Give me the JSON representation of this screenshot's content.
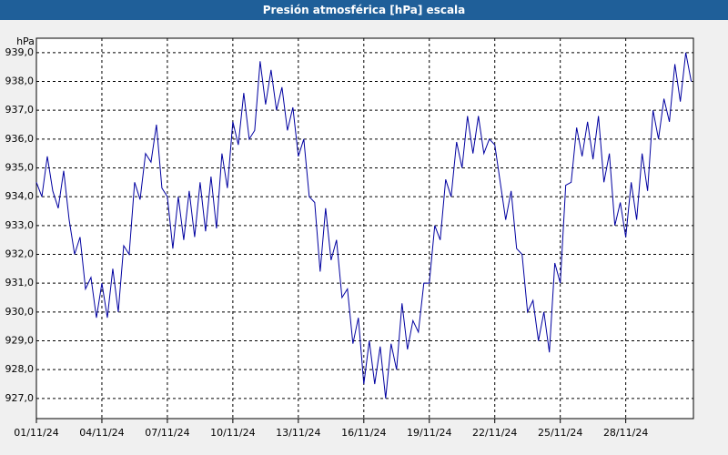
{
  "chart_data": {
    "type": "line",
    "title": "Presión atmosférica [hPa] escala",
    "y_label": "hPa",
    "color": "#0000a0",
    "grid": true,
    "xlim": [
      0,
      30.1
    ],
    "ylim": [
      926.3,
      939.5
    ],
    "xticks": [
      {
        "value": 0,
        "label": "01/11/24"
      },
      {
        "value": 3,
        "label": "04/11/24"
      },
      {
        "value": 6,
        "label": "07/11/24"
      },
      {
        "value": 9,
        "label": "10/11/24"
      },
      {
        "value": 12,
        "label": "13/11/24"
      },
      {
        "value": 15,
        "label": "16/11/24"
      },
      {
        "value": 18,
        "label": "19/11/24"
      },
      {
        "value": 21,
        "label": "22/11/24"
      },
      {
        "value": 24,
        "label": "25/11/24"
      },
      {
        "value": 27,
        "label": "28/11/24"
      }
    ],
    "yticks": [
      {
        "value": 927,
        "label": "927,0"
      },
      {
        "value": 928,
        "label": "928,0"
      },
      {
        "value": 929,
        "label": "929,0"
      },
      {
        "value": 930,
        "label": "930,0"
      },
      {
        "value": 931,
        "label": "931,0"
      },
      {
        "value": 932,
        "label": "932,0"
      },
      {
        "value": 933,
        "label": "933,0"
      },
      {
        "value": 934,
        "label": "934,0"
      },
      {
        "value": 935,
        "label": "935,0"
      },
      {
        "value": 936,
        "label": "936,0"
      },
      {
        "value": 937,
        "label": "937,0"
      },
      {
        "value": 938,
        "label": "938,0"
      },
      {
        "value": 939,
        "label": "939,0"
      }
    ],
    "x": [
      0,
      0.25,
      0.5,
      0.75,
      1,
      1.25,
      1.5,
      1.75,
      2,
      2.25,
      2.5,
      2.75,
      3,
      3.25,
      3.5,
      3.75,
      4,
      4.25,
      4.5,
      4.75,
      5,
      5.25,
      5.5,
      5.75,
      6,
      6.25,
      6.5,
      6.75,
      7,
      7.25,
      7.5,
      7.75,
      8,
      8.25,
      8.5,
      8.75,
      9,
      9.25,
      9.5,
      9.75,
      10,
      10.25,
      10.5,
      10.75,
      11,
      11.25,
      11.5,
      11.75,
      12,
      12.25,
      12.5,
      12.75,
      13,
      13.25,
      13.5,
      13.75,
      14,
      14.25,
      14.5,
      14.75,
      15,
      15.25,
      15.5,
      15.75,
      16,
      16.25,
      16.5,
      16.75,
      17,
      17.25,
      17.5,
      17.75,
      18,
      18.25,
      18.5,
      18.75,
      19,
      19.25,
      19.5,
      19.75,
      20,
      20.25,
      20.5,
      20.75,
      21,
      21.25,
      21.5,
      21.75,
      22,
      22.25,
      22.5,
      22.75,
      23,
      23.25,
      23.5,
      23.75,
      24,
      24.25,
      24.5,
      24.75,
      25,
      25.25,
      25.5,
      25.75,
      26,
      26.25,
      26.5,
      26.75,
      27,
      27.25,
      27.5,
      27.75,
      28,
      28.25,
      28.5,
      28.75,
      29,
      29.25,
      29.5,
      29.75,
      30
    ],
    "values": [
      934.5,
      934.0,
      935.4,
      934.2,
      933.6,
      934.9,
      933.2,
      932.0,
      932.6,
      930.8,
      931.2,
      929.8,
      931.0,
      929.8,
      931.5,
      930.0,
      932.3,
      932.0,
      934.5,
      933.9,
      935.5,
      935.2,
      936.5,
      934.3,
      934.0,
      932.2,
      934.0,
      932.5,
      934.2,
      932.6,
      934.5,
      932.8,
      934.7,
      932.9,
      935.5,
      934.3,
      936.6,
      935.8,
      937.6,
      936.0,
      936.3,
      938.7,
      937.2,
      938.4,
      937.0,
      937.8,
      936.3,
      937.1,
      935.4,
      936.0,
      934.0,
      933.8,
      931.4,
      933.6,
      931.8,
      932.5,
      930.5,
      930.8,
      928.9,
      929.8,
      927.5,
      929.0,
      927.5,
      928.8,
      927.0,
      928.9,
      928.0,
      930.3,
      928.7,
      929.7,
      929.3,
      931.0,
      931.0,
      933.0,
      932.5,
      934.6,
      934.0,
      935.9,
      935.0,
      936.8,
      935.5,
      936.8,
      935.5,
      936.0,
      935.8,
      934.5,
      933.2,
      934.2,
      932.2,
      932.0,
      930.0,
      930.4,
      929.0,
      930.0,
      928.6,
      931.7,
      931.0,
      934.4,
      934.5,
      936.4,
      935.4,
      936.6,
      935.3,
      936.8,
      934.5,
      935.5,
      933.0,
      933.8,
      932.6,
      934.5,
      933.2,
      935.5,
      934.2,
      937.0,
      936.0,
      937.4,
      936.6,
      938.6,
      937.3,
      939.0,
      938.0
    ]
  }
}
